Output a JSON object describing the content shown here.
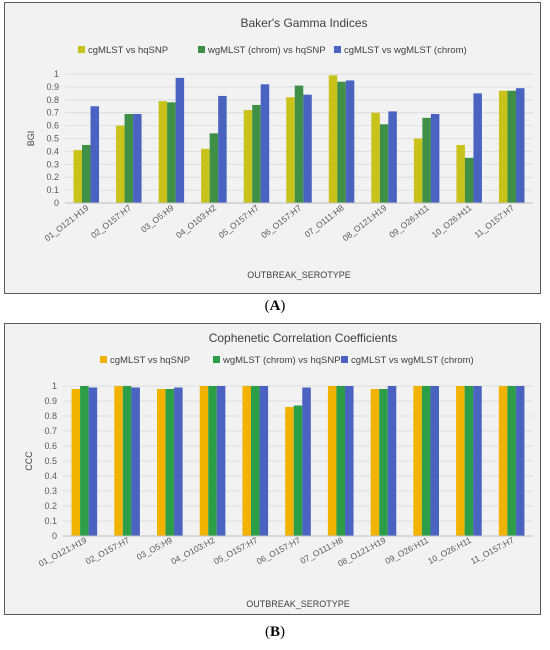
{
  "panels": [
    {
      "label_open": "(",
      "label_letter": "A",
      "label_close": ")",
      "chart_data": {
        "type": "bar",
        "title": "Baker's Gamma Indices",
        "xlabel": "OUTBREAK_SEROTYPE",
        "ylabel": "BGI",
        "ylim": [
          0,
          1
        ],
        "yticks": [
          "0",
          "0.1",
          "0.2",
          "0.3",
          "0.4",
          "0.5",
          "0.6",
          "0.7",
          "0.8",
          "0.9",
          "1"
        ],
        "grid": true,
        "legend_position": "top",
        "categories": [
          "01_O121:H19",
          "02_O157:H7",
          "03_O5:H9",
          "04_O103:H2",
          "05_O157:H7",
          "06_O157:H7",
          "07_O111:H8",
          "08_O121:H19",
          "09_O26:H11",
          "10_O26:H11",
          "11_O157:H7"
        ],
        "series": [
          {
            "name": "cgMLST vs hqSNP",
            "color": "#c9c21b",
            "values": [
              0.41,
              0.6,
              0.79,
              0.42,
              0.72,
              0.82,
              0.99,
              0.7,
              0.5,
              0.45,
              0.87
            ]
          },
          {
            "name": "wgMLST (chrom) vs hqSNP",
            "color": "#3f8f46",
            "values": [
              0.45,
              0.69,
              0.78,
              0.54,
              0.76,
              0.91,
              0.94,
              0.61,
              0.66,
              0.35,
              0.87
            ]
          },
          {
            "name": "cgMLST vs wgMLST (chrom)",
            "color": "#4a63c0",
            "values": [
              0.75,
              0.69,
              0.97,
              0.83,
              0.92,
              0.84,
              0.95,
              0.71,
              0.69,
              0.85,
              0.89
            ]
          }
        ]
      }
    },
    {
      "label_open": "(",
      "label_letter": "B",
      "label_close": ")",
      "chart_data": {
        "type": "bar",
        "title": "Cophenetic Correlation Coefficients",
        "xlabel": "OUTBREAK_SEROTYPE",
        "ylabel": "CCC",
        "ylim": [
          0,
          1
        ],
        "yticks": [
          "0",
          "0.1",
          "0.2",
          "0.3",
          "0.4",
          "0.5",
          "0.6",
          "0.7",
          "0.8",
          "0.9",
          "1"
        ],
        "grid": true,
        "legend_position": "top",
        "categories": [
          "01_O121:H19",
          "02_O157:H7",
          "03_O5:H9",
          "04_O103:H2",
          "05_O157:H7",
          "06_O157:H7",
          "07_O111:H8",
          "08_O121:H19",
          "09_O26:H11",
          "10_O26:H11",
          "11_O157:H7"
        ],
        "series": [
          {
            "name": "cgMLST vs hqSNP",
            "color": "#f2b200",
            "values": [
              0.98,
              1.0,
              0.98,
              1.0,
              1.0,
              0.86,
              1.0,
              0.98,
              1.0,
              1.0,
              1.0
            ]
          },
          {
            "name": "wgMLST (chrom) vs hqSNP",
            "color": "#2c9e48",
            "values": [
              1.0,
              1.0,
              0.98,
              1.0,
              1.0,
              0.87,
              1.0,
              0.98,
              1.0,
              1.0,
              1.0
            ]
          },
          {
            "name": "cgMLST vs wgMLST (chrom)",
            "color": "#4a63c0",
            "values": [
              0.99,
              0.99,
              0.99,
              1.0,
              1.0,
              0.99,
              1.0,
              1.0,
              1.0,
              1.0,
              1.0
            ]
          }
        ]
      }
    }
  ]
}
